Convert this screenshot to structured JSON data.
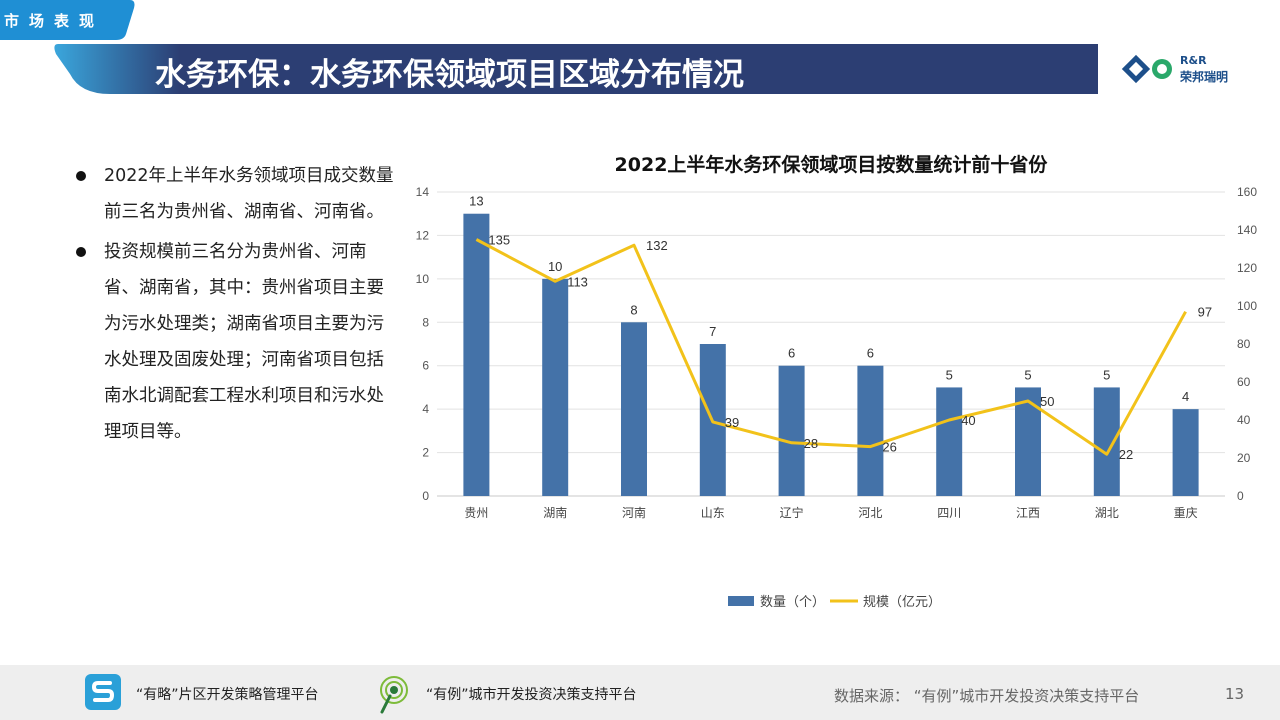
{
  "header": {
    "section_tag": "市场表现",
    "title": "水务环保：水务环保领域项目区域分布情况",
    "logo_en": "R&R",
    "logo_cn": "荣邦瑞明"
  },
  "bullets": [
    "2022年上半年水务领域项目成交数量前三名为贵州省、湖南省、河南省。",
    "投资规模前三名分为贵州省、河南省、湖南省，其中：贵州省项目主要为污水处理类；湖南省项目主要为污水处理及固废处理；河南省项目包括南水北调配套工程水利项目和污水处理项目等。"
  ],
  "chart_data": {
    "type": "bar",
    "title": "2022上半年水务环保领域项目按数量统计前十省份",
    "categories": [
      "贵州",
      "湖南",
      "河南",
      "山东",
      "辽宁",
      "河北",
      "四川",
      "江西",
      "湖北",
      "重庆"
    ],
    "series": [
      {
        "name": "数量（个）",
        "type": "bar",
        "axis": "left",
        "color": "#4472a8",
        "values": [
          13,
          10,
          8,
          7,
          6,
          6,
          5,
          5,
          5,
          4
        ]
      },
      {
        "name": "规模（亿元）",
        "type": "line",
        "axis": "right",
        "color": "#f2c21a",
        "values": [
          135,
          113,
          132,
          39,
          28,
          26,
          40,
          50,
          22,
          97
        ]
      }
    ],
    "ylim_left": [
      0,
      14
    ],
    "yticks_left": [
      0,
      2,
      4,
      6,
      8,
      10,
      12,
      14
    ],
    "ylim_right": [
      0,
      160
    ],
    "yticks_right": [
      0,
      20,
      40,
      60,
      80,
      100,
      120,
      140,
      160
    ],
    "grid": true,
    "legend_position": "bottom"
  },
  "footer": {
    "platform1": "“有略”片区开发策略管理平台",
    "platform2": "“有例”城市开发投资决策支持平台",
    "source": "数据来源：  “有例”城市开发投资决策支持平台",
    "page_number": "13"
  },
  "colors": {
    "navy": "#2c3e73",
    "accent_blue": "#1f8fd4",
    "bar": "#4472a8",
    "line": "#f2c21a"
  }
}
